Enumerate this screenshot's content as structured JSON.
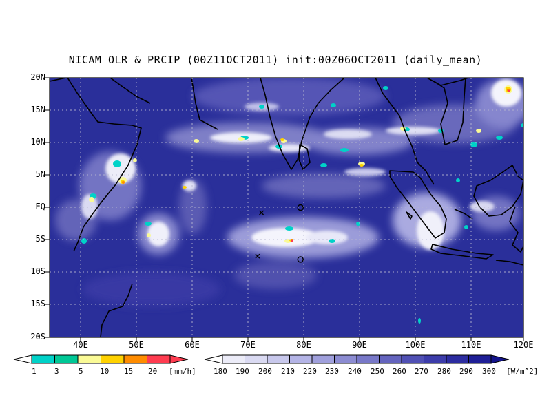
{
  "title": "NICAM OLR & PRCIP (00Z11OCT2011) init:00Z06OCT2011 (daily_mean)",
  "map": {
    "lon_range": [
      35,
      120
    ],
    "lat_range": [
      -20,
      20
    ],
    "lat_labels": [
      "20N",
      "15N",
      "10N",
      "5N",
      "EQ",
      "5S",
      "10S",
      "15S",
      "20S"
    ],
    "lon_labels": [
      "40E",
      "50E",
      "60E",
      "70E",
      "80E",
      "90E",
      "100E",
      "110E",
      "120E"
    ],
    "grid": true,
    "ocean_color": "#2a2f9a",
    "land_outline_color": "#000000",
    "markers": [
      {
        "symbol": "x",
        "lon": 73,
        "lat": -0.8
      },
      {
        "symbol": "o",
        "lon": 80,
        "lat": 0
      },
      {
        "symbol": "x",
        "lon": 72.3,
        "lat": -7.5
      },
      {
        "symbol": "o",
        "lon": 80,
        "lat": -8
      }
    ]
  },
  "precip_colorbar": {
    "unit": "[mm/h]",
    "ticks": [
      "1",
      "3",
      "5",
      "10",
      "15",
      "20"
    ],
    "colors": [
      "#00d2c8",
      "#00c896",
      "#fafa96",
      "#ffd200",
      "#ff8c00",
      "#ff3c50"
    ]
  },
  "olr_colorbar": {
    "unit": "[W/m^2]",
    "ticks": [
      "180",
      "190",
      "200",
      "210",
      "220",
      "230",
      "240",
      "250",
      "260",
      "270",
      "280",
      "290",
      "300"
    ],
    "colors": [
      "#ececf8",
      "#dadaf2",
      "#c8c8ec",
      "#b4b4e6",
      "#a0a0dc",
      "#8c8cd2",
      "#7878c8",
      "#6464be",
      "#5050b4",
      "#3c3caa",
      "#2c2ca0",
      "#1e1e96",
      "#14148c"
    ]
  }
}
